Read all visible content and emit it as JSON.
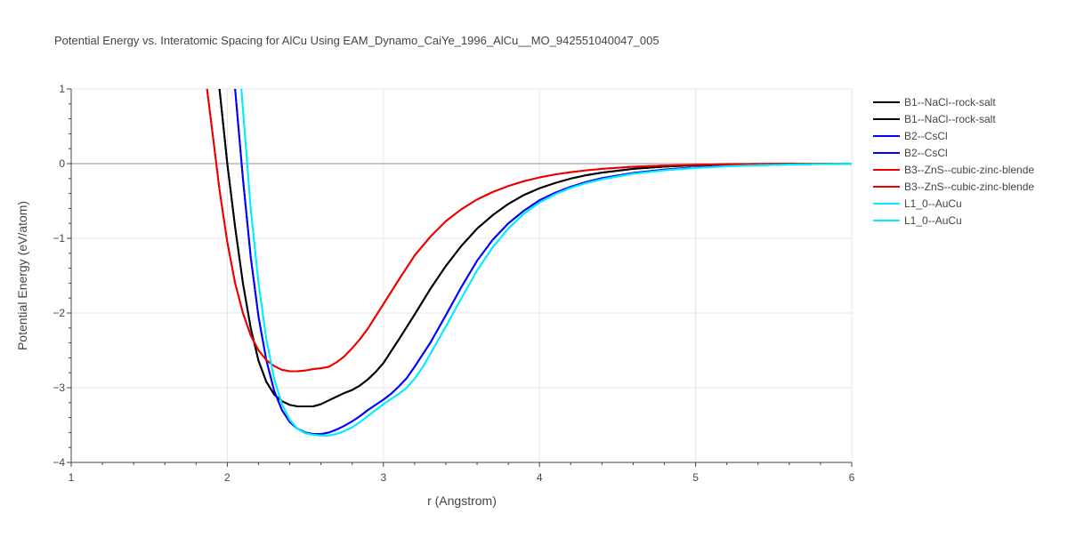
{
  "chart_data": {
    "type": "line",
    "title": "Potential Energy vs. Interatomic Spacing for AlCu Using EAM_Dynamo_CaiYe_1996_AlCu__MO_942551040047_005",
    "xlabel": "r (Angstrom)",
    "ylabel": "Potential Energy (eV/atom)",
    "xlim": [
      1,
      6
    ],
    "ylim": [
      -4,
      1
    ],
    "xticks": [
      1,
      2,
      3,
      4,
      5,
      6
    ],
    "yticks": [
      1,
      0,
      -1,
      -2,
      -3,
      -4
    ],
    "grid": true,
    "legend_position": "right",
    "series": [
      {
        "name": "B1--NaCl--rock-salt",
        "color": "#000000",
        "x": [
          1.95,
          2.0,
          2.05,
          2.1,
          2.15,
          2.2,
          2.25,
          2.3,
          2.35,
          2.4,
          2.45,
          2.5,
          2.55,
          2.6,
          2.65,
          2.7,
          2.75,
          2.8,
          2.85,
          2.9,
          2.95,
          3.0,
          3.1,
          3.2,
          3.3,
          3.4,
          3.5,
          3.6,
          3.7,
          3.8,
          3.9,
          4.0,
          4.1,
          4.2,
          4.3,
          4.4,
          4.6,
          4.8,
          5.0,
          5.2,
          5.4,
          5.6,
          5.8,
          6.0
        ],
        "y": [
          1.0,
          0.0,
          -0.85,
          -1.6,
          -2.2,
          -2.64,
          -2.92,
          -3.09,
          -3.18,
          -3.23,
          -3.25,
          -3.25,
          -3.25,
          -3.22,
          -3.17,
          -3.12,
          -3.07,
          -3.03,
          -2.97,
          -2.89,
          -2.79,
          -2.67,
          -2.35,
          -2.02,
          -1.68,
          -1.37,
          -1.1,
          -0.87,
          -0.69,
          -0.54,
          -0.42,
          -0.33,
          -0.26,
          -0.2,
          -0.155,
          -0.12,
          -0.07,
          -0.04,
          -0.022,
          -0.012,
          -0.006,
          -0.003,
          -0.001,
          0.0
        ]
      },
      {
        "name": "B1--NaCl--rock-salt",
        "color": "#000000",
        "x": [
          1.95,
          2.0,
          2.05,
          2.1,
          2.15,
          2.2,
          2.25,
          2.3,
          2.35,
          2.4,
          2.45,
          2.5,
          2.55,
          2.6,
          2.65,
          2.7,
          2.75,
          2.8,
          2.85,
          2.9,
          2.95,
          3.0,
          3.1,
          3.2,
          3.3,
          3.4,
          3.5,
          3.6,
          3.7,
          3.8,
          3.9,
          4.0,
          4.1,
          4.2,
          4.3,
          4.4,
          4.6,
          4.8,
          5.0,
          5.2,
          5.4,
          5.6,
          5.8,
          6.0
        ],
        "y": [
          1.0,
          0.0,
          -0.85,
          -1.6,
          -2.2,
          -2.64,
          -2.92,
          -3.09,
          -3.18,
          -3.23,
          -3.25,
          -3.25,
          -3.25,
          -3.22,
          -3.17,
          -3.12,
          -3.07,
          -3.03,
          -2.97,
          -2.89,
          -2.79,
          -2.67,
          -2.35,
          -2.02,
          -1.68,
          -1.37,
          -1.1,
          -0.87,
          -0.69,
          -0.54,
          -0.42,
          -0.33,
          -0.26,
          -0.2,
          -0.155,
          -0.12,
          -0.07,
          -0.04,
          -0.022,
          -0.012,
          -0.006,
          -0.003,
          -0.001,
          0.0
        ]
      },
      {
        "name": "B2--CsCl",
        "color": "#0000ff",
        "x": [
          2.05,
          2.1,
          2.15,
          2.2,
          2.25,
          2.3,
          2.35,
          2.4,
          2.45,
          2.5,
          2.55,
          2.6,
          2.65,
          2.7,
          2.75,
          2.8,
          2.85,
          2.9,
          2.95,
          3.0,
          3.05,
          3.1,
          3.15,
          3.2,
          3.3,
          3.4,
          3.5,
          3.6,
          3.7,
          3.8,
          3.9,
          4.0,
          4.1,
          4.2,
          4.3,
          4.4,
          4.6,
          4.8,
          5.0,
          5.2,
          5.4,
          5.6,
          5.8,
          6.0
        ],
        "y": [
          1.0,
          -0.2,
          -1.25,
          -2.05,
          -2.63,
          -3.04,
          -3.3,
          -3.46,
          -3.55,
          -3.6,
          -3.62,
          -3.62,
          -3.6,
          -3.56,
          -3.51,
          -3.45,
          -3.38,
          -3.3,
          -3.23,
          -3.16,
          -3.08,
          -2.98,
          -2.87,
          -2.72,
          -2.4,
          -2.03,
          -1.65,
          -1.3,
          -1.02,
          -0.8,
          -0.63,
          -0.49,
          -0.39,
          -0.31,
          -0.245,
          -0.195,
          -0.125,
          -0.08,
          -0.05,
          -0.03,
          -0.018,
          -0.01,
          -0.005,
          -0.002
        ]
      },
      {
        "name": "B2--CsCl",
        "color": "#0000ff",
        "x": [
          2.05,
          2.1,
          2.15,
          2.2,
          2.25,
          2.3,
          2.35,
          2.4,
          2.45,
          2.5,
          2.55,
          2.6,
          2.65,
          2.7,
          2.75,
          2.8,
          2.85,
          2.9,
          2.95,
          3.0,
          3.05,
          3.1,
          3.15,
          3.2,
          3.3,
          3.4,
          3.5,
          3.6,
          3.7,
          3.8,
          3.9,
          4.0,
          4.1,
          4.2,
          4.3,
          4.4,
          4.6,
          4.8,
          5.0,
          5.2,
          5.4,
          5.6,
          5.8,
          6.0
        ],
        "y": [
          1.0,
          -0.2,
          -1.25,
          -2.05,
          -2.63,
          -3.04,
          -3.3,
          -3.46,
          -3.55,
          -3.6,
          -3.62,
          -3.62,
          -3.6,
          -3.56,
          -3.51,
          -3.45,
          -3.38,
          -3.3,
          -3.23,
          -3.16,
          -3.08,
          -2.98,
          -2.87,
          -2.72,
          -2.4,
          -2.03,
          -1.65,
          -1.3,
          -1.02,
          -0.8,
          -0.63,
          -0.49,
          -0.39,
          -0.31,
          -0.245,
          -0.195,
          -0.125,
          -0.08,
          -0.05,
          -0.03,
          -0.018,
          -0.01,
          -0.005,
          -0.002
        ]
      },
      {
        "name": "B3--ZnS--cubic-zinc-blende",
        "color": "#ee0000",
        "x": [
          1.87,
          1.9,
          1.95,
          2.0,
          2.05,
          2.1,
          2.15,
          2.2,
          2.25,
          2.3,
          2.35,
          2.4,
          2.45,
          2.5,
          2.55,
          2.6,
          2.65,
          2.7,
          2.75,
          2.8,
          2.85,
          2.9,
          3.0,
          3.1,
          3.2,
          3.3,
          3.4,
          3.5,
          3.6,
          3.7,
          3.8,
          3.9,
          4.0,
          4.1,
          4.2,
          4.3,
          4.4,
          4.6,
          4.8,
          5.0,
          5.2,
          5.4,
          5.6,
          5.8,
          6.0
        ],
        "y": [
          1.0,
          0.5,
          -0.35,
          -1.05,
          -1.6,
          -2.0,
          -2.3,
          -2.5,
          -2.63,
          -2.71,
          -2.76,
          -2.78,
          -2.78,
          -2.77,
          -2.75,
          -2.74,
          -2.72,
          -2.66,
          -2.58,
          -2.47,
          -2.35,
          -2.21,
          -1.88,
          -1.55,
          -1.23,
          -0.98,
          -0.77,
          -0.61,
          -0.48,
          -0.38,
          -0.3,
          -0.235,
          -0.185,
          -0.145,
          -0.115,
          -0.09,
          -0.07,
          -0.042,
          -0.025,
          -0.015,
          -0.009,
          -0.005,
          -0.003,
          -0.001,
          0.0
        ]
      },
      {
        "name": "B3--ZnS--cubic-zinc-blende",
        "color": "#ee0000",
        "x": [
          1.87,
          1.9,
          1.95,
          2.0,
          2.05,
          2.1,
          2.15,
          2.2,
          2.25,
          2.3,
          2.35,
          2.4,
          2.45,
          2.5,
          2.55,
          2.6,
          2.65,
          2.7,
          2.75,
          2.8,
          2.85,
          2.9,
          3.0,
          3.1,
          3.2,
          3.3,
          3.4,
          3.5,
          3.6,
          3.7,
          3.8,
          3.9,
          4.0,
          4.1,
          4.2,
          4.3,
          4.4,
          4.6,
          4.8,
          5.0,
          5.2,
          5.4,
          5.6,
          5.8,
          6.0
        ],
        "y": [
          1.0,
          0.5,
          -0.35,
          -1.05,
          -1.6,
          -2.0,
          -2.3,
          -2.5,
          -2.63,
          -2.71,
          -2.76,
          -2.78,
          -2.78,
          -2.77,
          -2.75,
          -2.74,
          -2.72,
          -2.66,
          -2.58,
          -2.47,
          -2.35,
          -2.21,
          -1.88,
          -1.55,
          -1.23,
          -0.98,
          -0.77,
          -0.61,
          -0.48,
          -0.38,
          -0.3,
          -0.235,
          -0.185,
          -0.145,
          -0.115,
          -0.09,
          -0.07,
          -0.042,
          -0.025,
          -0.015,
          -0.009,
          -0.005,
          -0.003,
          -0.001,
          0.0
        ]
      },
      {
        "name": "L1_0--AuCu",
        "color": "#00eeff",
        "x": [
          2.09,
          2.15,
          2.2,
          2.25,
          2.3,
          2.35,
          2.4,
          2.45,
          2.5,
          2.55,
          2.6,
          2.65,
          2.7,
          2.75,
          2.8,
          2.85,
          2.9,
          2.95,
          3.0,
          3.05,
          3.1,
          3.15,
          3.2,
          3.25,
          3.3,
          3.4,
          3.5,
          3.6,
          3.7,
          3.8,
          3.9,
          4.0,
          4.1,
          4.2,
          4.3,
          4.4,
          4.6,
          4.8,
          5.0,
          5.2,
          5.4,
          5.6,
          5.8,
          6.0
        ],
        "y": [
          1.0,
          -0.6,
          -1.6,
          -2.35,
          -2.88,
          -3.22,
          -3.43,
          -3.55,
          -3.61,
          -3.63,
          -3.64,
          -3.64,
          -3.62,
          -3.58,
          -3.53,
          -3.46,
          -3.38,
          -3.3,
          -3.22,
          -3.15,
          -3.08,
          -3.0,
          -2.88,
          -2.73,
          -2.55,
          -2.18,
          -1.8,
          -1.43,
          -1.12,
          -0.87,
          -0.67,
          -0.52,
          -0.41,
          -0.325,
          -0.26,
          -0.21,
          -0.135,
          -0.09,
          -0.058,
          -0.036,
          -0.022,
          -0.013,
          -0.006,
          -0.002
        ]
      },
      {
        "name": "L1_0--AuCu",
        "color": "#00eeff",
        "x": [
          2.09,
          2.15,
          2.2,
          2.25,
          2.3,
          2.35,
          2.4,
          2.45,
          2.5,
          2.55,
          2.6,
          2.65,
          2.7,
          2.75,
          2.8,
          2.85,
          2.9,
          2.95,
          3.0,
          3.05,
          3.1,
          3.15,
          3.2,
          3.25,
          3.3,
          3.4,
          3.5,
          3.6,
          3.7,
          3.8,
          3.9,
          4.0,
          4.1,
          4.2,
          4.3,
          4.4,
          4.6,
          4.8,
          5.0,
          5.2,
          5.4,
          5.6,
          5.8,
          6.0
        ],
        "y": [
          1.0,
          -0.6,
          -1.6,
          -2.35,
          -2.88,
          -3.22,
          -3.43,
          -3.55,
          -3.61,
          -3.63,
          -3.64,
          -3.64,
          -3.62,
          -3.58,
          -3.53,
          -3.46,
          -3.38,
          -3.3,
          -3.22,
          -3.15,
          -3.08,
          -3.0,
          -2.88,
          -2.73,
          -2.55,
          -2.18,
          -1.8,
          -1.43,
          -1.12,
          -0.87,
          -0.67,
          -0.52,
          -0.41,
          -0.325,
          -0.26,
          -0.21,
          -0.135,
          -0.09,
          -0.058,
          -0.036,
          -0.022,
          -0.013,
          -0.006,
          -0.002
        ]
      }
    ]
  }
}
